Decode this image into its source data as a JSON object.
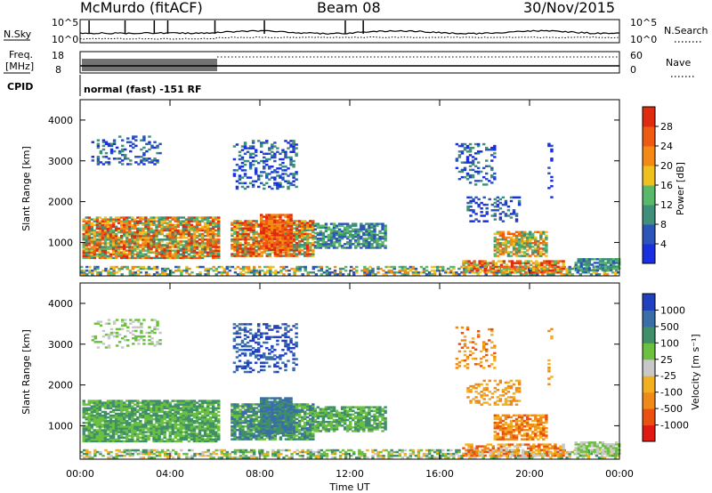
{
  "header": {
    "station": "McMurdo (fitACF)",
    "beam": "Beam 08",
    "date": "30/Nov/2015"
  },
  "top_panel": {
    "nsky_label": "N.Sky",
    "nsky_ticks": [
      "10^5",
      "10^0"
    ],
    "nsearch_label": "N.Search",
    "nsearch_ticks": [
      "10^5",
      "10^0"
    ],
    "freq_label_1": "Freq.",
    "freq_label_2": "[MHz]",
    "freq_ticks": [
      "18",
      "8"
    ],
    "nave_label": "Nave",
    "nave_ticks": [
      "60",
      "0"
    ],
    "cpid_label": "CPID",
    "cpid_text": "normal (fast) -151 RF"
  },
  "chart_data": [
    {
      "type": "heatmap",
      "name": "power",
      "ylabel": "Slant Range [km]",
      "xlabel": "",
      "ylim": [
        180,
        4500
      ],
      "yticks": [
        "1000",
        "2000",
        "3000",
        "4000"
      ],
      "xticks": [
        "00:00",
        "04:00",
        "08:00",
        "12:00",
        "16:00",
        "20:00",
        "00:00"
      ],
      "colorbar": {
        "label": "Power [dB]",
        "ticks": [
          "4",
          "8",
          "12",
          "16",
          "20",
          "24",
          "28"
        ],
        "colors": [
          "#1a2fe0",
          "#2b55b8",
          "#3f8f7a",
          "#59b86a",
          "#f0c020",
          "#f28a15",
          "#ee5a12",
          "#e02b10"
        ]
      }
    },
    {
      "type": "heatmap",
      "name": "velocity",
      "ylabel": "Slant Range [km]",
      "xlabel": "Time UT",
      "ylim": [
        180,
        4500
      ],
      "yticks": [
        "1000",
        "2000",
        "3000",
        "4000"
      ],
      "xticks": [
        "00:00",
        "04:00",
        "08:00",
        "12:00",
        "16:00",
        "20:00",
        "00:00"
      ],
      "colorbar": {
        "label": "Velocity [m s⁻¹]",
        "ticks": [
          "1000",
          "500",
          "100",
          "25",
          "-25",
          "-100",
          "-500",
          "-1000"
        ],
        "colors": [
          "#2040c0",
          "#3a6ea8",
          "#3f8f6a",
          "#6cc040",
          "#c8c8c8",
          "#f2b020",
          "#ef8a18",
          "#ea5010",
          "#e01a10"
        ]
      }
    }
  ]
}
